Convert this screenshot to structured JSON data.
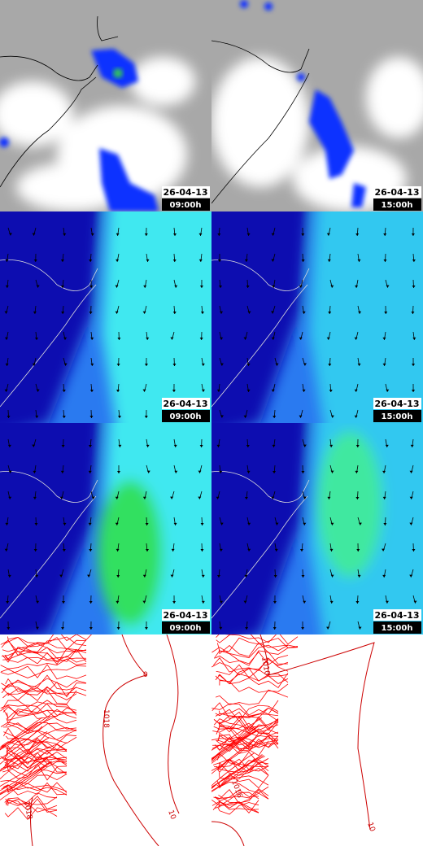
{
  "panels": [
    {
      "date": "26-04-13",
      "time": "09:00h"
    },
    {
      "date": "26-04-13",
      "time": "15:00h"
    },
    {
      "date": "26-04-13",
      "time": "09:00h"
    },
    {
      "date": "26-04-13",
      "time": "15:00h"
    },
    {
      "date": "26-04-13",
      "time": "09:00h"
    },
    {
      "date": "26-04-13",
      "time": "15:00h"
    }
  ],
  "pressure_panels": [
    {
      "labels": [
        "0",
        "1018",
        "1018",
        "10"
      ]
    },
    {
      "labels": [
        "1010",
        "1016",
        "10"
      ]
    }
  ]
}
